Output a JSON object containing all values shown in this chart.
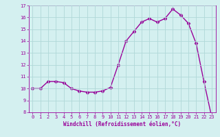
{
  "x": [
    0,
    1,
    2,
    3,
    4,
    5,
    6,
    7,
    8,
    9,
    10,
    11,
    12,
    13,
    14,
    15,
    16,
    17,
    18,
    19,
    20,
    21,
    22,
    23
  ],
  "y": [
    10.0,
    10.0,
    10.6,
    10.6,
    10.5,
    10.0,
    9.8,
    9.7,
    9.7,
    9.8,
    10.1,
    12.0,
    14.0,
    14.8,
    15.6,
    15.9,
    15.6,
    15.9,
    16.7,
    16.2,
    15.5,
    13.8,
    10.6,
    7.6
  ],
  "line_color": "#990099",
  "marker": "D",
  "markersize": 2.5,
  "linewidth": 1.0,
  "bg_color": "#d4f0f0",
  "grid_color": "#b0d8d8",
  "xlabel": "Windchill (Refroidissement éolien,°C)",
  "xlabel_color": "#990099",
  "tick_color": "#990099",
  "ylim": [
    8,
    17
  ],
  "yticks": [
    8,
    9,
    10,
    11,
    12,
    13,
    14,
    15,
    16,
    17
  ],
  "xticks": [
    0,
    1,
    2,
    3,
    4,
    5,
    6,
    7,
    8,
    9,
    10,
    11,
    12,
    13,
    14,
    15,
    16,
    17,
    18,
    19,
    20,
    21,
    22,
    23
  ],
  "spine_color": "#990099"
}
